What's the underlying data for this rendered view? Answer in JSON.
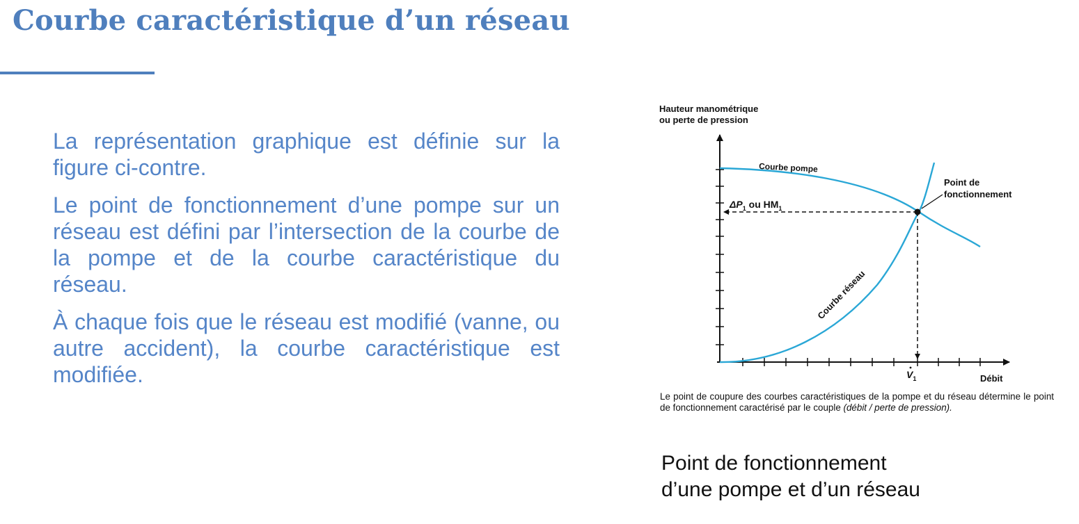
{
  "slide": {
    "title": "Courbe caractéristique d’un réseau",
    "paragraphs": [
      "La représentation graphique est définie sur la figure ci-contre.",
      "Le point de fonctionnement d’une pompe sur un réseau est défini par l’intersection de la courbe de la pompe et de la courbe caractéristique du réseau.",
      "À chaque fois que le réseau est modifié (vanne, ou autre accident), la courbe caractéristique est modifiée."
    ],
    "colors": {
      "title": "#4f7fbd",
      "body_text": "#5585c8",
      "curve": "#2aa7d6"
    }
  },
  "figure": {
    "y_axis_label_line1": "Hauteur manométrique",
    "y_axis_label_line2": "ou perte de pression",
    "x_axis_label": "Débit",
    "pump_curve_label": "Courbe pompe",
    "network_curve_label": "Courbe réseau",
    "operating_point_label_line1": "Point de",
    "operating_point_label_line2": "fonctionnement",
    "delta_p_label_main": "ΔP",
    "delta_p_label_sub": "1",
    "delta_p_label_rest": " ou HM",
    "delta_p_label_sub2": "1",
    "v1_label": "V",
    "v1_sub": "1",
    "caption_main": "Le point de coupure des courbes caractéristiques de la pompe et du réseau détermine le point de fonctionnement caractérisé par le couple ",
    "caption_italic": "(débit / perte de pression).",
    "title_line1": "Point de fonctionnement",
    "title_line2": "d’une pompe et d’un réseau"
  }
}
